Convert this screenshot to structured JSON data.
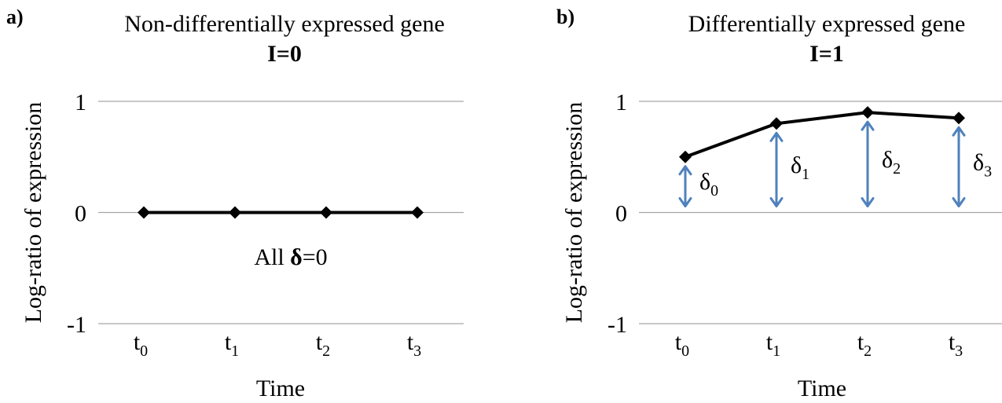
{
  "chart_data": [
    {
      "type": "line",
      "panel_label": "a)",
      "title": "Non-differentially expressed gene",
      "subtitle": "I=0",
      "categories": [
        "t0",
        "t1",
        "t2",
        "t3"
      ],
      "tick_labels": [
        {
          "base": "t",
          "sub": "0"
        },
        {
          "base": "t",
          "sub": "1"
        },
        {
          "base": "t",
          "sub": "2"
        },
        {
          "base": "t",
          "sub": "3"
        }
      ],
      "series": [
        {
          "values": [
            0,
            0,
            0,
            0
          ],
          "color": "#000000",
          "marker": "diamond"
        }
      ],
      "xlabel": "Time",
      "ylabel": "Log-ratio of expression",
      "ylim": [
        -1,
        1
      ],
      "yticks": [
        "1",
        "0",
        "-1"
      ],
      "grid": true,
      "annotation": {
        "prefix": "All ",
        "bold": "δ",
        "suffix": "=0"
      }
    },
    {
      "type": "line",
      "panel_label": "b)",
      "title": "Differentially expressed gene",
      "subtitle": "I=1",
      "categories": [
        "t0",
        "t1",
        "t2",
        "t3"
      ],
      "tick_labels": [
        {
          "base": "t",
          "sub": "0"
        },
        {
          "base": "t",
          "sub": "1"
        },
        {
          "base": "t",
          "sub": "2"
        },
        {
          "base": "t",
          "sub": "3"
        }
      ],
      "series": [
        {
          "values": [
            0.5,
            0.8,
            0.9,
            0.85
          ],
          "color": "#000000",
          "marker": "diamond"
        }
      ],
      "xlabel": "Time",
      "ylabel": "Log-ratio of expression",
      "ylim": [
        -1,
        1
      ],
      "yticks": [
        "1",
        "0",
        "-1"
      ],
      "grid": true,
      "deltas": [
        {
          "base": "δ",
          "sub": "0"
        },
        {
          "base": "δ",
          "sub": "1"
        },
        {
          "base": "δ",
          "sub": "2"
        },
        {
          "base": "δ",
          "sub": "3"
        }
      ],
      "arrow_color": "#4f81bd"
    }
  ]
}
